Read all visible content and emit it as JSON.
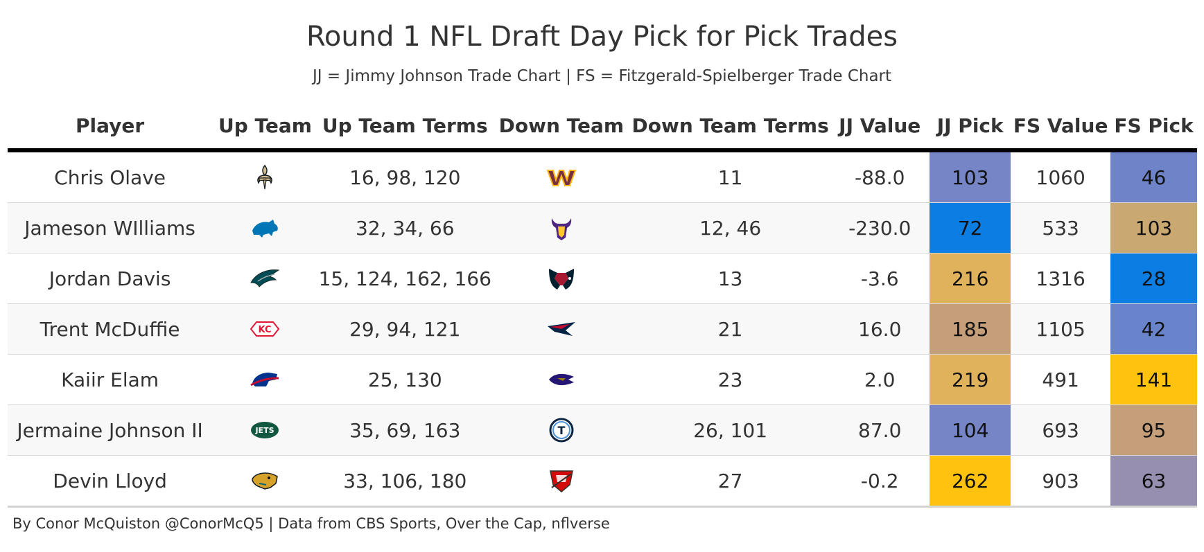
{
  "header": {
    "title": "Round 1 NFL Draft Day Pick for Pick Trades",
    "subtitle": "JJ = Jimmy Johnson Trade Chart | FS = Fitzgerald-Spielberger Trade Chart"
  },
  "table": {
    "columns": [
      "Player",
      "Up Team",
      "Up Team Terms",
      "Down Team",
      "Down Team Terms",
      "JJ Value",
      "JJ Pick",
      "FS Value",
      "FS Pick"
    ],
    "rows": [
      {
        "player": "Chris Olave",
        "up_team_icon": "saints-logo-icon",
        "up_terms": "16, 98, 120",
        "down_team_icon": "commanders-logo-icon",
        "down_terms": "11",
        "jj_value": "-88.0",
        "jj_pick": "103",
        "jj_pick_color": "#7585c5",
        "fs_value": "1060",
        "fs_pick": "46",
        "fs_pick_color": "#6f84c8"
      },
      {
        "player": "Jameson WIlliams",
        "up_team_icon": "lions-logo-icon",
        "up_terms": "32, 34, 66",
        "down_team_icon": "vikings-logo-icon",
        "down_terms": "12, 46",
        "jj_value": "-230.0",
        "jj_pick": "72",
        "jj_pick_color": "#0c7ee3",
        "fs_value": "533",
        "fs_pick": "103",
        "fs_pick_color": "#c9a872"
      },
      {
        "player": "Jordan Davis",
        "up_team_icon": "eagles-logo-icon",
        "up_terms": "15, 124, 162, 166",
        "down_team_icon": "texans-logo-icon",
        "down_terms": "13",
        "jj_value": "-3.6",
        "jj_pick": "216",
        "jj_pick_color": "#e1b25c",
        "fs_value": "1316",
        "fs_pick": "28",
        "fs_pick_color": "#0c7ee3"
      },
      {
        "player": "Trent McDuffie",
        "up_team_icon": "chiefs-logo-icon",
        "up_terms": "29, 94, 121",
        "down_team_icon": "patriots-logo-icon",
        "down_terms": "21",
        "jj_value": "16.0",
        "jj_pick": "185",
        "jj_pick_color": "#c59e7a",
        "fs_value": "1105",
        "fs_pick": "42",
        "fs_pick_color": "#6a84cc"
      },
      {
        "player": "Kaiir Elam",
        "up_team_icon": "bills-logo-icon",
        "up_terms": "25, 130",
        "down_team_icon": "ravens-logo-icon",
        "down_terms": "23",
        "jj_value": "2.0",
        "jj_pick": "219",
        "jj_pick_color": "#e1b25c",
        "fs_value": "491",
        "fs_pick": "141",
        "fs_pick_color": "#ffc20e"
      },
      {
        "player": "Jermaine Johnson II",
        "up_team_icon": "jets-logo-icon",
        "up_terms": "35, 69, 163",
        "down_team_icon": "titans-logo-icon",
        "down_terms": "26, 101",
        "jj_value": "87.0",
        "jj_pick": "104",
        "jj_pick_color": "#7585c5",
        "fs_value": "693",
        "fs_pick": "95",
        "fs_pick_color": "#c59e7a"
      },
      {
        "player": "Devin Lloyd",
        "up_team_icon": "jaguars-logo-icon",
        "up_terms": "33, 106, 180",
        "down_team_icon": "buccaneers-logo-icon",
        "down_terms": "27",
        "jj_value": "-0.2",
        "jj_pick": "262",
        "jj_pick_color": "#ffc20e",
        "fs_value": "903",
        "fs_pick": "63",
        "fs_pick_color": "#968fb0"
      }
    ]
  },
  "footer": {
    "credit": "By Conor McQuiston @ConorMcQ5 | Data from CBS Sports, Over the Cap, nflverse"
  }
}
